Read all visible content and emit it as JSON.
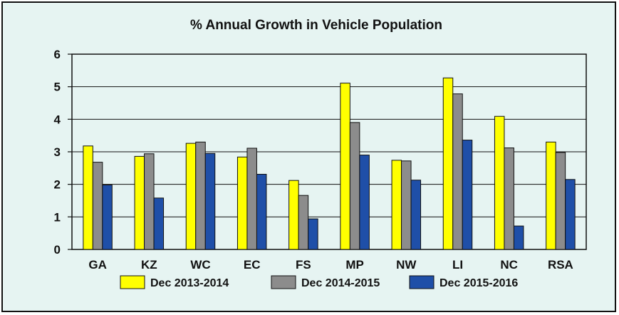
{
  "chart_data": {
    "type": "bar",
    "title": "% Annual Growth in Vehicle Population",
    "xlabel": "",
    "ylabel": "",
    "categories": [
      "GA",
      "KZ",
      "WC",
      "EC",
      "FS",
      "MP",
      "NW",
      "LI",
      "NC",
      "RSA"
    ],
    "series": [
      {
        "name": "Dec 2013-2014",
        "color": "#ffff00",
        "values": [
          3.18,
          2.86,
          3.26,
          2.84,
          2.12,
          5.11,
          2.74,
          5.27,
          4.09,
          3.3
        ]
      },
      {
        "name": "Dec 2014-2015",
        "color": "#8c8c8c",
        "values": [
          2.68,
          2.94,
          3.3,
          3.11,
          1.66,
          3.9,
          2.72,
          4.78,
          3.12,
          2.98
        ]
      },
      {
        "name": "Dec 2015-2016",
        "color": "#1f4fa8",
        "values": [
          1.98,
          1.58,
          2.95,
          2.31,
          0.94,
          2.9,
          2.13,
          3.36,
          0.72,
          2.15
        ]
      }
    ],
    "ylim": [
      0,
      6
    ],
    "yticks": [
      0,
      1,
      2,
      3,
      4,
      5,
      6
    ],
    "grid": true,
    "legend_position": "bottom"
  }
}
